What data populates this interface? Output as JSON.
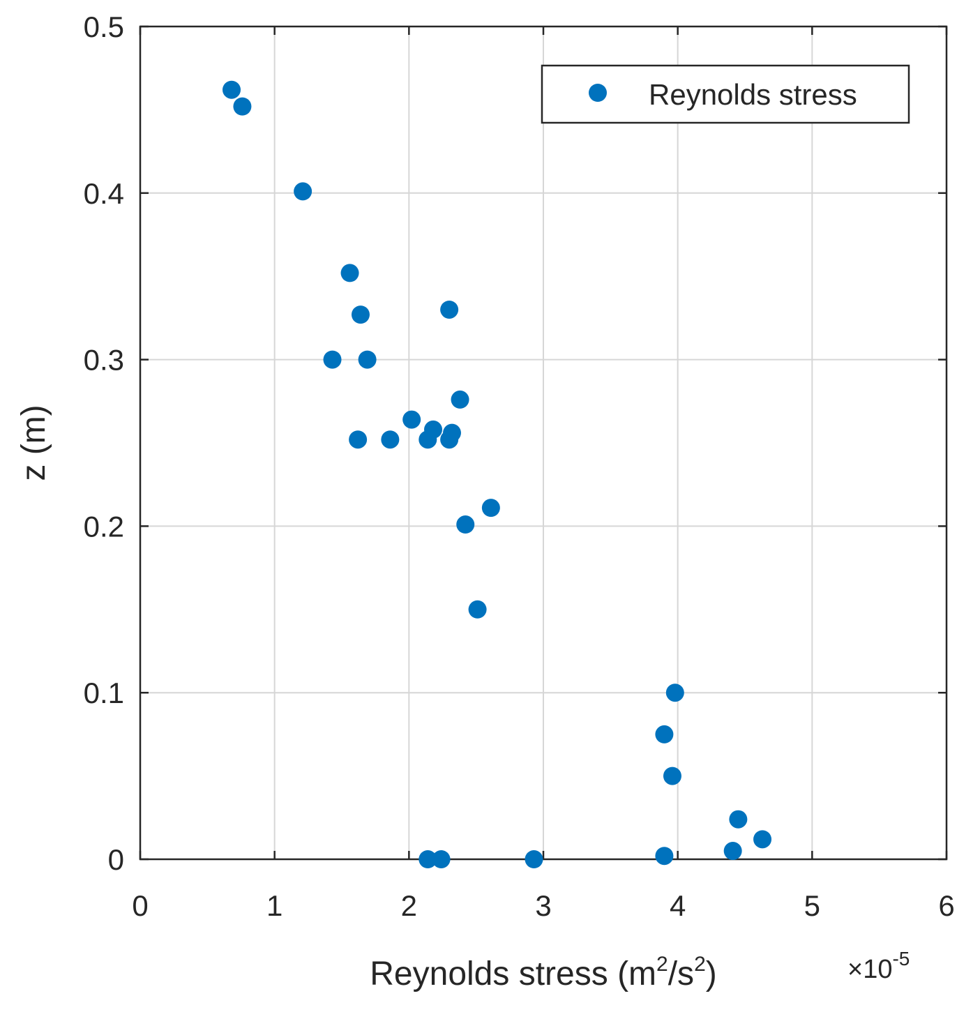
{
  "chart_data": {
    "type": "scatter",
    "title": "",
    "xlabel_main": "Reynolds stress (m",
    "xlabel_sup1": "2",
    "xlabel_mid": "/s",
    "xlabel_sup2": "2",
    "xlabel_end": ")",
    "ylabel": "z (m)",
    "x_exponent_prefix": "×10",
    "x_exponent_power": "-5",
    "xlim": [
      0,
      6
    ],
    "ylim": [
      0,
      0.5
    ],
    "xticks": [
      "0",
      "1",
      "2",
      "3",
      "4",
      "5",
      "6"
    ],
    "yticks": [
      "0",
      "0.1",
      "0.2",
      "0.3",
      "0.4",
      "0.5"
    ],
    "grid": true,
    "legend_position": "top-right",
    "marker_color": "#0072BD",
    "series": [
      {
        "name": "Reynolds stress",
        "x": [
          0.68,
          0.76,
          1.21,
          1.56,
          1.64,
          2.3,
          1.43,
          1.69,
          2.38,
          2.02,
          2.18,
          2.32,
          1.62,
          1.86,
          2.14,
          2.3,
          2.61,
          2.42,
          2.51,
          3.98,
          3.9,
          3.96,
          4.45,
          4.63,
          4.41,
          3.9,
          2.14,
          2.24,
          2.93
        ],
        "y": [
          0.462,
          0.452,
          0.401,
          0.352,
          0.327,
          0.33,
          0.3,
          0.3,
          0.276,
          0.264,
          0.258,
          0.256,
          0.252,
          0.252,
          0.252,
          0.252,
          0.211,
          0.201,
          0.15,
          0.1,
          0.075,
          0.05,
          0.024,
          0.012,
          0.005,
          0.002,
          0.0,
          0.0,
          0.0
        ]
      }
    ]
  }
}
